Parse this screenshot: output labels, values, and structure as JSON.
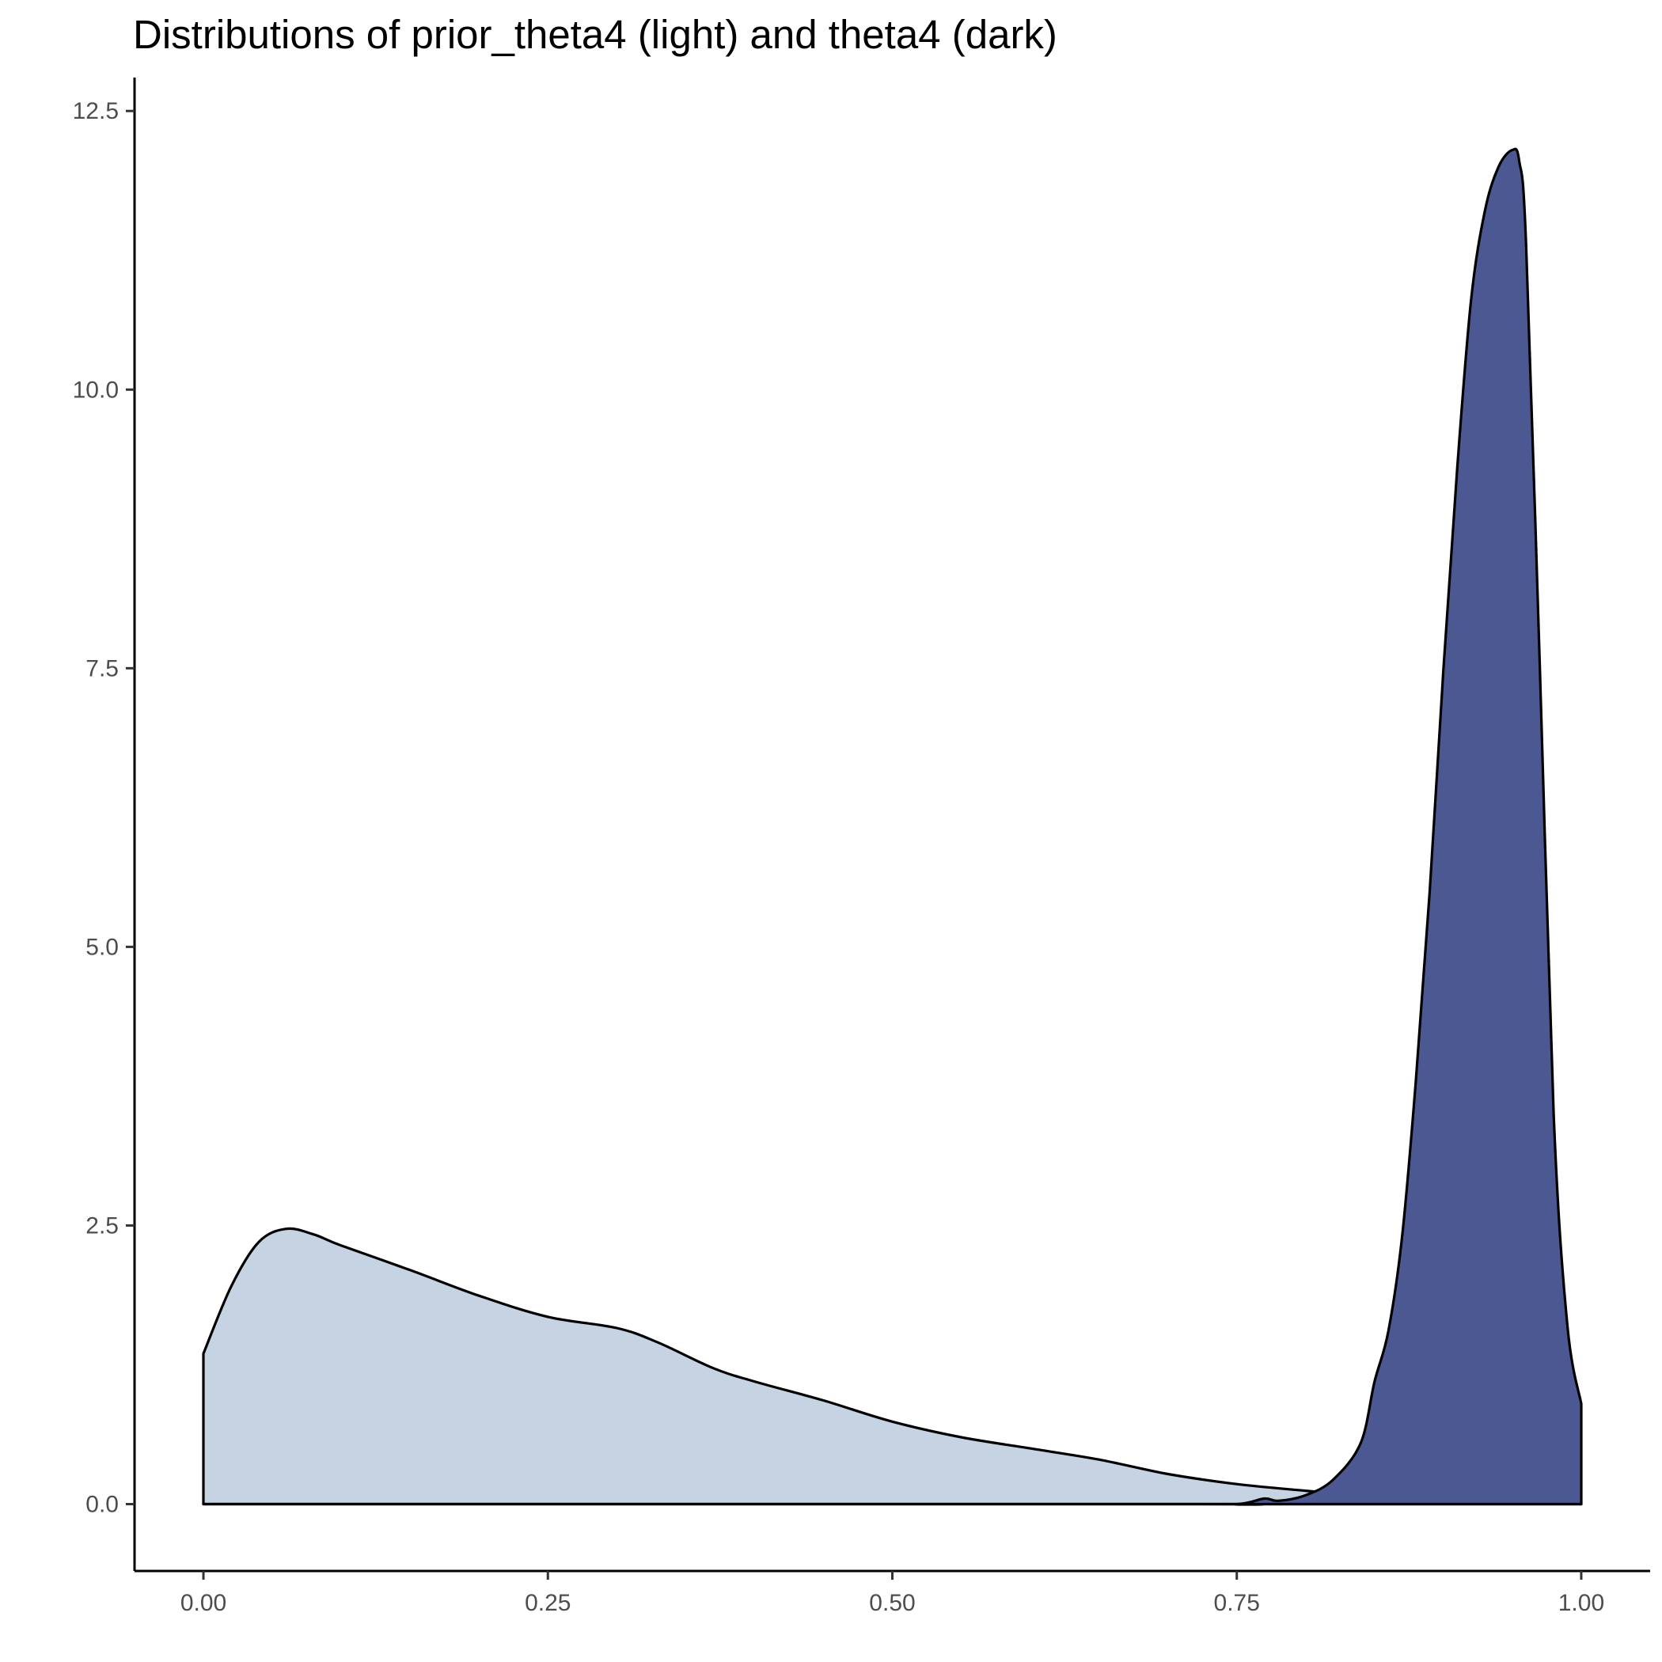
{
  "chart_data": {
    "type": "area",
    "title": "Distributions of prior_theta4 (light) and theta4 (dark)",
    "xlabel": "",
    "ylabel": "",
    "xlim": [
      -0.05,
      1.05
    ],
    "ylim": [
      -0.6,
      12.8
    ],
    "x_ticks": [
      0.0,
      0.25,
      0.5,
      0.75,
      1.0
    ],
    "x_tick_labels": [
      "0.00",
      "0.25",
      "0.50",
      "0.75",
      "1.00"
    ],
    "y_ticks": [
      0.0,
      2.5,
      5.0,
      7.5,
      10.0,
      12.5
    ],
    "y_tick_labels": [
      "0.0",
      "2.5",
      "5.0",
      "7.5",
      "10.0",
      "12.5"
    ],
    "grid": false,
    "series": [
      {
        "fill": "#c6d3e3",
        "x": [
          0.0,
          0.02,
          0.04,
          0.06,
          0.08,
          0.1,
          0.15,
          0.2,
          0.25,
          0.3,
          0.33,
          0.37,
          0.4,
          0.45,
          0.5,
          0.55,
          0.6,
          0.65,
          0.7,
          0.75,
          0.8,
          0.85,
          0.9,
          0.95,
          1.0
        ],
        "y": [
          1.35,
          1.95,
          2.35,
          2.47,
          2.42,
          2.32,
          2.1,
          1.87,
          1.68,
          1.58,
          1.45,
          1.22,
          1.1,
          0.93,
          0.74,
          0.6,
          0.5,
          0.4,
          0.27,
          0.18,
          0.12,
          0.07,
          0.04,
          0.02,
          0.0
        ]
      },
      {
        "fill": "#4b5892",
        "x": [
          0.0,
          0.7,
          0.75,
          0.77,
          0.78,
          0.8,
          0.82,
          0.84,
          0.85,
          0.86,
          0.87,
          0.88,
          0.89,
          0.9,
          0.91,
          0.92,
          0.93,
          0.94,
          0.95,
          0.955,
          0.96,
          0.97,
          0.98,
          0.99,
          1.0
        ],
        "y": [
          0.0,
          0.0,
          0.0,
          0.05,
          0.03,
          0.08,
          0.22,
          0.55,
          1.1,
          1.55,
          2.4,
          3.8,
          5.5,
          7.5,
          9.3,
          10.8,
          11.6,
          12.0,
          12.15,
          12.05,
          11.3,
          7.5,
          3.5,
          1.6,
          0.9
        ]
      }
    ]
  }
}
